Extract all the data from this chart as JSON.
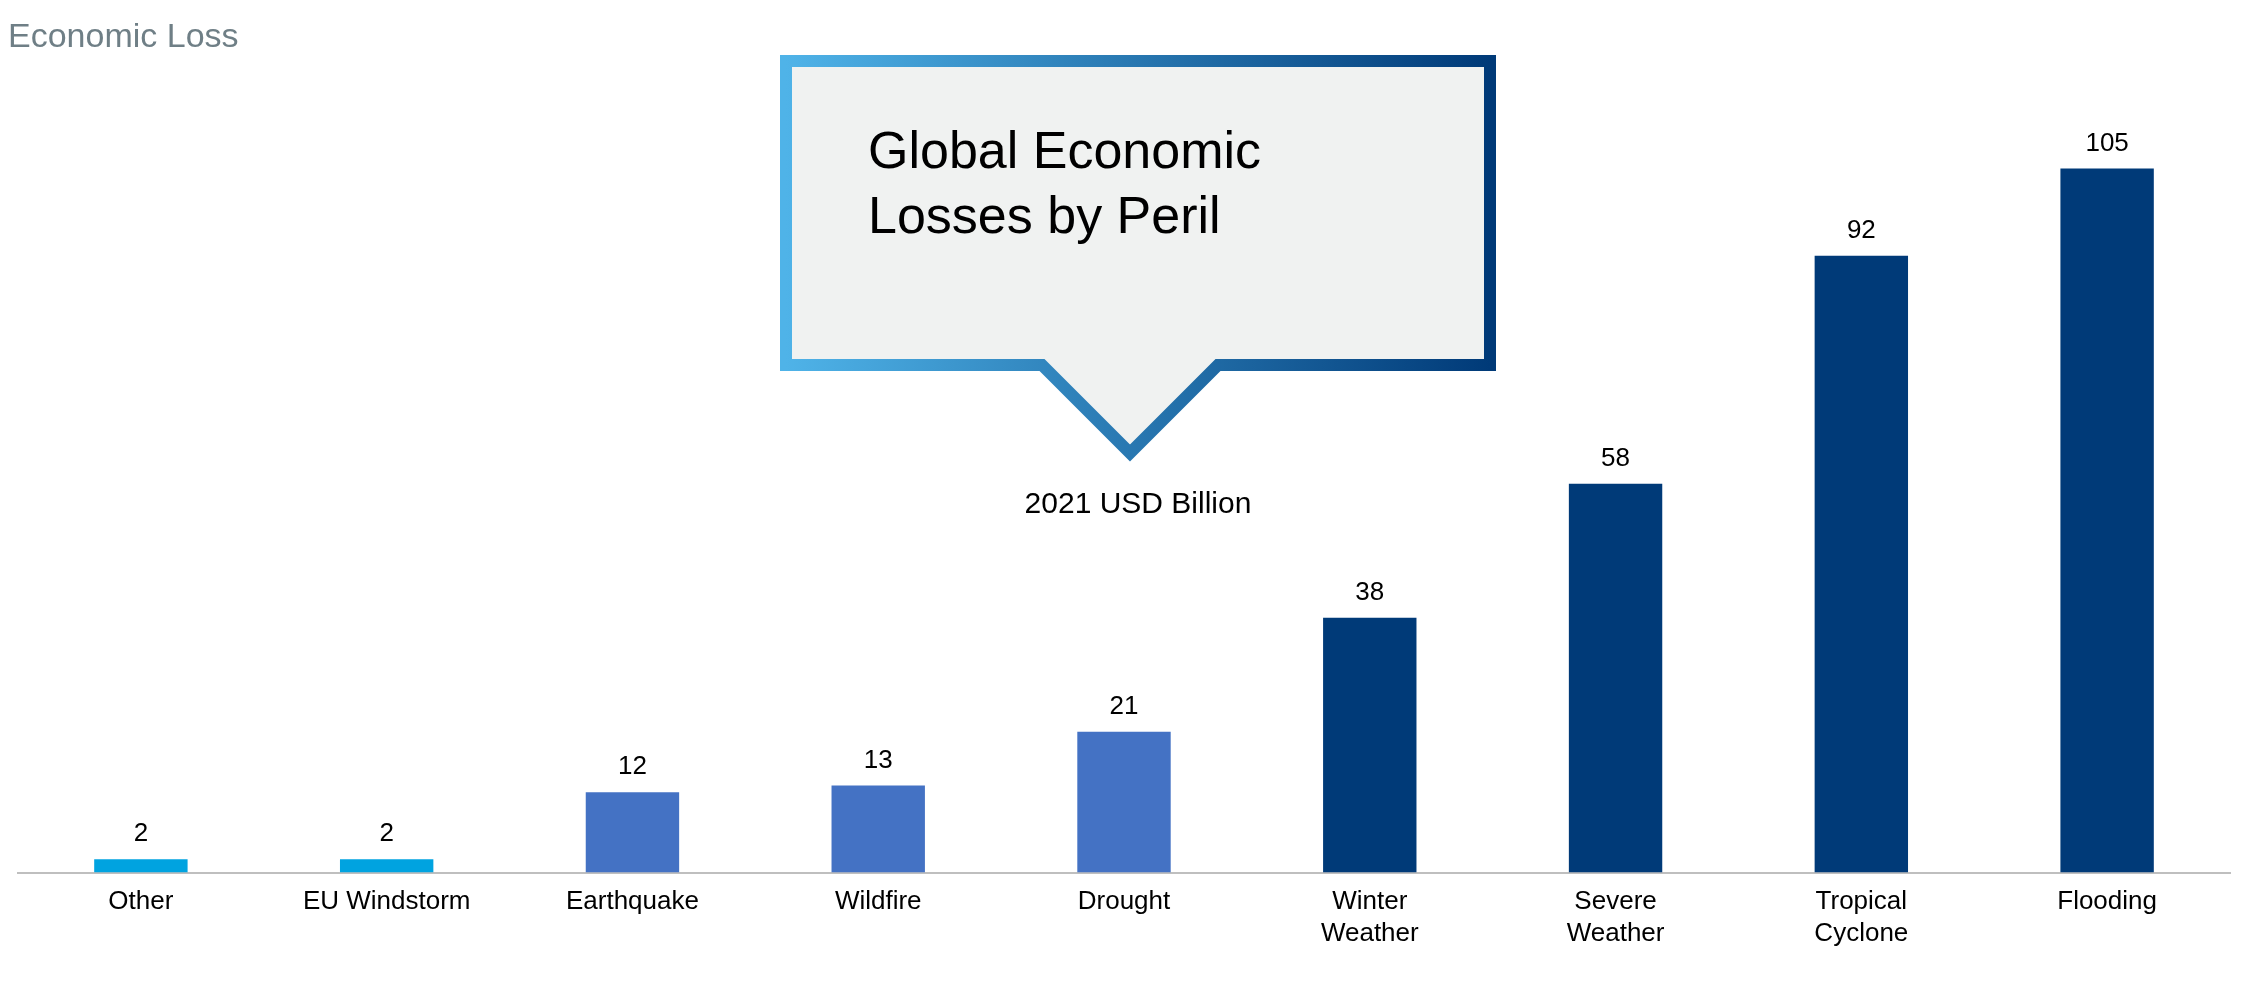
{
  "chart_data": {
    "type": "bar",
    "title": "Global Economic Losses by Peril",
    "subtitle": "2021 USD Billion",
    "ylabel": "Economic Loss",
    "categories": [
      "Other",
      "EU Windstorm",
      "Earthquake",
      "Wildfire",
      "Drought",
      "Winter Weather",
      "Severe Weather",
      "Tropical Cyclone",
      "Flooding"
    ],
    "values": [
      2,
      2,
      12,
      13,
      21,
      38,
      58,
      92,
      105
    ],
    "colors": [
      "#00a3e0",
      "#00a3e0",
      "#4472c4",
      "#4472c4",
      "#4472c4",
      "#003a78",
      "#003a78",
      "#003a78",
      "#003a78"
    ],
    "data_labels": true,
    "grid": false,
    "legend": false
  }
}
